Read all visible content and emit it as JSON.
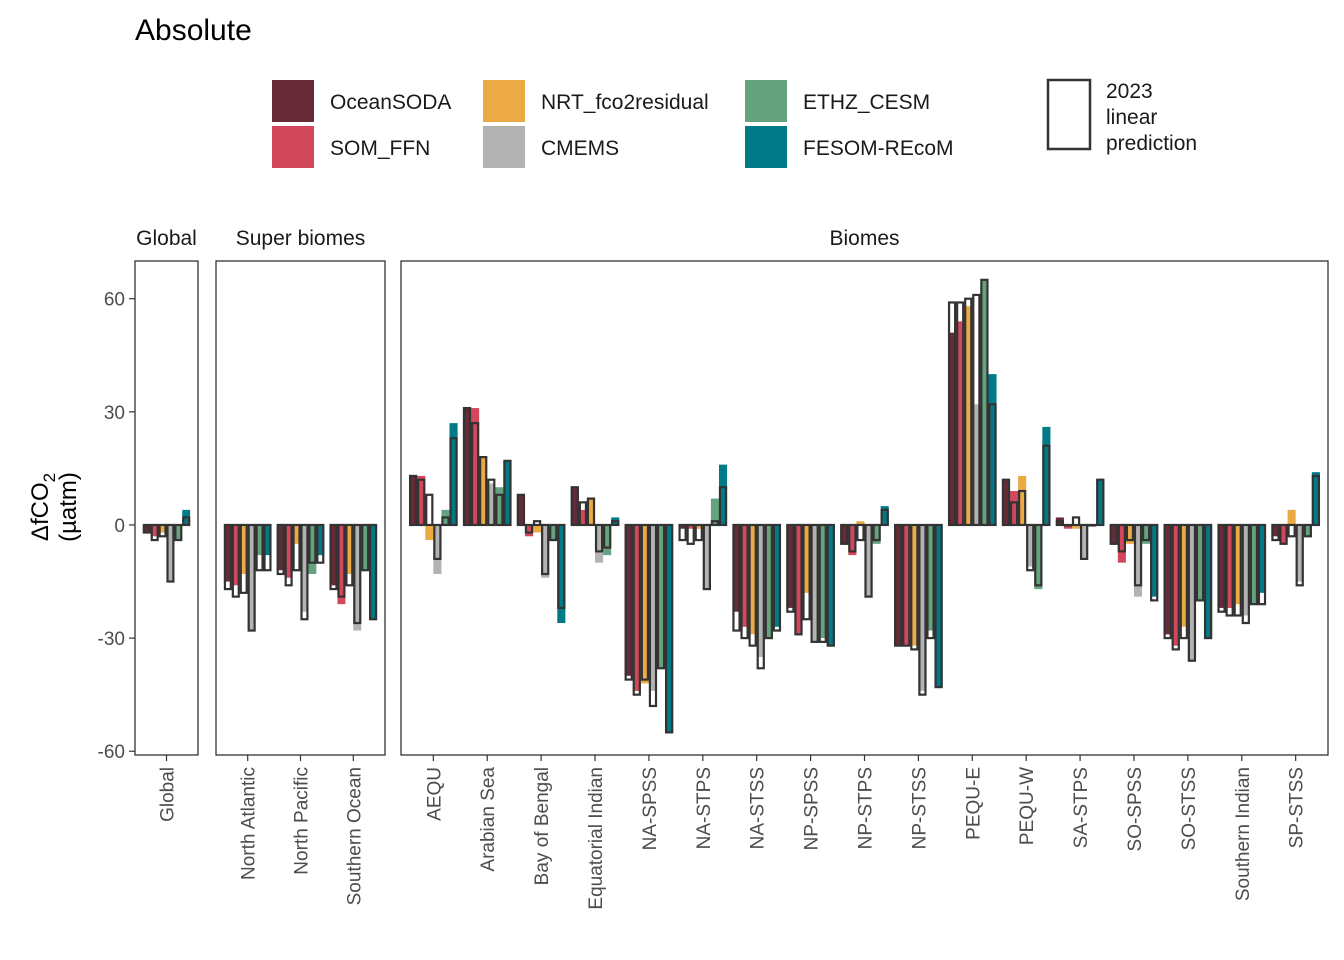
{
  "title": "Absolute",
  "legend": {
    "entries": [
      {
        "label": "OceanSODA",
        "color": "#672a37"
      },
      {
        "label": "SOM_FFN",
        "color": "#d2475c"
      },
      {
        "label": "NRT_fco2residual",
        "color": "#ecaa45"
      },
      {
        "label": "CMEMS",
        "color": "#b3b3b3"
      },
      {
        "label": "ETHZ_CESM",
        "color": "#65a37e"
      },
      {
        "label": "FESOM-REcoM",
        "color": "#007a87"
      }
    ],
    "outline_entry": {
      "lines": [
        "2023",
        "linear",
        "prediction"
      ]
    }
  },
  "panels": [
    {
      "strip": "Global"
    },
    {
      "strip": "Super biomes"
    },
    {
      "strip": "Biomes"
    }
  ],
  "y_axis": {
    "label_main": "ΔfCO",
    "label_sub": "2",
    "label_unit": "(µatm)",
    "ticks": [
      "60",
      "30",
      "0",
      "-30",
      "-60"
    ]
  },
  "chart_data": {
    "type": "bar",
    "title": "Absolute",
    "ylabel": "ΔfCO2 (µatm)",
    "ylim": [
      -61,
      70
    ],
    "grid": false,
    "legend_position": "top",
    "series": [
      "OceanSODA",
      "SOM_FFN",
      "NRT_fco2residual",
      "CMEMS",
      "ETHZ_CESM",
      "FESOM-REcoM"
    ],
    "outline_series": "2023 linear prediction",
    "panels": [
      {
        "strip": "Global",
        "categories": [
          "Global"
        ],
        "values": [
          [
            -2,
            -3,
            -2,
            -15,
            -4,
            4
          ]
        ],
        "predictions": [
          [
            -2,
            -4,
            -3,
            -15,
            -4,
            2
          ]
        ]
      },
      {
        "strip": "Super biomes",
        "categories": [
          "North Atlantic",
          "North Pacific",
          "Southern Ocean"
        ],
        "values": [
          [
            -15,
            -16,
            -13,
            -28,
            -8,
            -8
          ],
          [
            -12,
            -14,
            -5,
            -23,
            -13,
            -8
          ],
          [
            -16,
            -21,
            -13,
            -28,
            -12,
            -25
          ]
        ],
        "predictions": [
          [
            -17,
            -19,
            -18,
            -28,
            -12,
            -12
          ],
          [
            -13,
            -16,
            -12,
            -25,
            -10,
            -10
          ],
          [
            -17,
            -19,
            -16,
            -26,
            -12,
            -25
          ]
        ]
      },
      {
        "strip": "Biomes",
        "categories": [
          "AEQU",
          "Arabian Sea",
          "Bay of Bengal",
          "Equatorial Indian",
          "NA-SPSS",
          "NA-STPS",
          "NA-STSS",
          "NP-SPSS",
          "NP-STPS",
          "NP-STSS",
          "PEQU-E",
          "PEQU-W",
          "SA-STPS",
          "SO-SPSS",
          "SO-STSS",
          "Southern Indian",
          "SP-STSS"
        ],
        "values": [
          [
            13,
            13,
            -4,
            -13,
            4,
            27
          ],
          [
            31,
            31,
            18,
            11,
            10,
            17
          ],
          [
            8,
            -3,
            -2,
            -14,
            -4,
            -26
          ],
          [
            10,
            4,
            7,
            -10,
            -8,
            2
          ],
          [
            -40,
            -44,
            -42,
            -44,
            -38,
            -55
          ],
          [
            -1,
            -1,
            -1,
            -17,
            7,
            16
          ],
          [
            -23,
            -27,
            -29,
            -35,
            -30,
            -27
          ],
          [
            -22,
            -29,
            -18,
            -31,
            -30,
            -32
          ],
          [
            -5,
            -8,
            1,
            -19,
            -5,
            5
          ],
          [
            -32,
            -32,
            -32,
            -44,
            -28,
            -43
          ],
          [
            51,
            54,
            58,
            32,
            65,
            40
          ],
          [
            12,
            9,
            13,
            -11,
            -17,
            26
          ],
          [
            2,
            -1,
            -1,
            -9,
            0,
            12
          ],
          [
            -5,
            -10,
            -5,
            -19,
            -5,
            -19
          ],
          [
            -29,
            -32,
            -27,
            -36,
            -20,
            -30
          ],
          [
            -22,
            -22,
            -21,
            -24,
            -21,
            -18
          ],
          [
            -3,
            -5,
            4,
            -15,
            -3,
            14
          ]
        ],
        "predictions": [
          [
            13,
            12,
            8,
            -9,
            2,
            23
          ],
          [
            31,
            27,
            18,
            12,
            8,
            17
          ],
          [
            8,
            -2,
            1,
            -13,
            -4,
            -22
          ],
          [
            10,
            6,
            7,
            -7,
            -6,
            1
          ],
          [
            -41,
            -45,
            -41,
            -48,
            -38,
            -55
          ],
          [
            -4,
            -5,
            -4,
            -17,
            1,
            10
          ],
          [
            -28,
            -30,
            -32,
            -38,
            -30,
            -28
          ],
          [
            -23,
            -29,
            -25,
            -31,
            -31,
            -32
          ],
          [
            -5,
            -7,
            -4,
            -19,
            -4,
            4
          ],
          [
            -32,
            -32,
            -33,
            -45,
            -30,
            -43
          ],
          [
            59,
            59,
            60,
            61,
            65,
            32
          ],
          [
            12,
            6,
            9,
            -12,
            -16,
            21
          ],
          [
            1,
            0,
            2,
            -9,
            0,
            12
          ],
          [
            -5,
            -7,
            -4,
            -16,
            -4,
            -20
          ],
          [
            -30,
            -33,
            -30,
            -36,
            -20,
            -30
          ],
          [
            -23,
            -24,
            -24,
            -26,
            -21,
            -21
          ],
          [
            -4,
            -5,
            -3,
            -16,
            -3,
            13
          ]
        ]
      }
    ]
  }
}
